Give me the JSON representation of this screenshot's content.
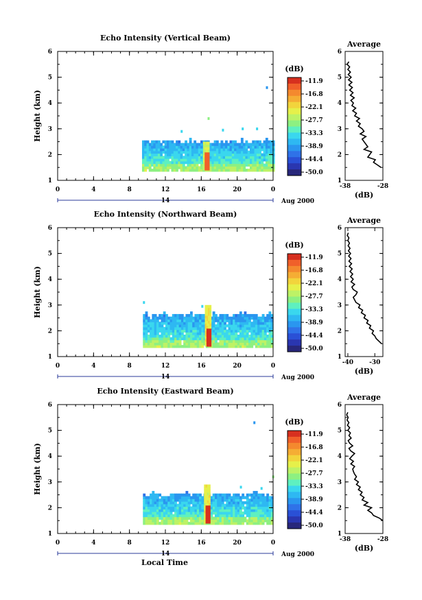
{
  "figure": {
    "xlabel_bottom": "Local Time"
  },
  "colorbar": {
    "unit": "(dB)",
    "tick_labels": [
      "-11.9",
      "-16.8",
      "-22.1",
      "-27.7",
      "-33.3",
      "-38.9",
      "-44.4",
      "-50.0"
    ],
    "colors": [
      "#d7301f",
      "#f0602a",
      "#f4892e",
      "#f5ad34",
      "#f2d43c",
      "#e6f04a",
      "#bdf266",
      "#8df081",
      "#5ef0c0",
      "#3ad7ee",
      "#2eb8f2",
      "#2a96ef",
      "#2f72e8",
      "#2a50d6",
      "#2a36b0",
      "#28277a"
    ]
  },
  "chart_data": [
    {
      "type": "heatmap",
      "title": "Echo Intensity (Vertical Beam)",
      "ylabel": "Height (km)",
      "xlabel": "Local Time",
      "x_ticks": [
        "0",
        "4",
        "8",
        "12",
        "16",
        "20",
        "0"
      ],
      "y_ticks": [
        "1",
        "2",
        "3",
        "4",
        "5",
        "6"
      ],
      "xlim": [
        0,
        24
      ],
      "ylim": [
        1,
        6
      ],
      "date_label": "14",
      "date_suffix": "Aug 2000",
      "data_region": {
        "time_start": 9.4,
        "time_end": 24,
        "height_bottom": 1.35,
        "height_top": 2.55
      },
      "enhanced_band": {
        "time": [
          16.2,
          16.9
        ],
        "height": [
          1.4,
          2.5
        ],
        "level_db": -20
      },
      "scatter_echoes": [
        {
          "time": 23.2,
          "height": 4.55,
          "level_db": -40
        },
        {
          "time": 16.7,
          "height": 3.35,
          "level_db": -30
        },
        {
          "time": 13.7,
          "height": 2.85,
          "level_db": -36
        },
        {
          "time": 18.3,
          "height": 2.9,
          "level_db": -36
        },
        {
          "time": 20.5,
          "height": 2.95,
          "level_db": -36
        },
        {
          "time": 22.1,
          "height": 2.95,
          "level_db": -36
        }
      ],
      "profile": {
        "title": "Average",
        "xlabel": "(dB)",
        "x_ticks": [
          "-38",
          "-28"
        ],
        "xlim": [
          -38,
          -28
        ],
        "heights": [
          1.5,
          1.6,
          1.7,
          1.8,
          1.9,
          2.0,
          2.1,
          2.2,
          2.3,
          2.4,
          2.5,
          2.6,
          2.7,
          2.8,
          2.9,
          3.0,
          3.1,
          3.2,
          3.3,
          3.4,
          3.5,
          3.6,
          3.7,
          3.8,
          3.9,
          4.0,
          4.1,
          4.2,
          4.3,
          4.4,
          4.5,
          4.6,
          4.7,
          4.8,
          4.9,
          5.0,
          5.1,
          5.2,
          5.3,
          5.4,
          5.5,
          5.6
        ],
        "values_db": [
          -28.5,
          -29.5,
          -30.5,
          -30.0,
          -32.0,
          -31.5,
          -31.0,
          -33.0,
          -32.0,
          -32.5,
          -33.0,
          -33.5,
          -32.5,
          -34.0,
          -33.0,
          -33.5,
          -34.5,
          -34.0,
          -35.0,
          -34.2,
          -35.5,
          -35.0,
          -36.0,
          -35.2,
          -36.2,
          -35.8,
          -36.5,
          -35.6,
          -36.6,
          -35.9,
          -36.8,
          -36.1,
          -37.0,
          -36.2,
          -37.1,
          -36.4,
          -37.2,
          -36.6,
          -37.3,
          -36.8,
          -37.5,
          -37.0
        ]
      }
    },
    {
      "type": "heatmap",
      "title": "Echo Intensity (Northward Beam)",
      "ylabel": "Height (km)",
      "xlabel": "Local Time",
      "x_ticks": [
        "0",
        "4",
        "8",
        "12",
        "16",
        "20",
        "0"
      ],
      "y_ticks": [
        "1",
        "2",
        "3",
        "4",
        "5",
        "6"
      ],
      "xlim": [
        0,
        24
      ],
      "ylim": [
        1,
        6
      ],
      "date_label": "14",
      "date_suffix": "Aug 2000",
      "data_region": {
        "time_start": 9.5,
        "time_end": 24,
        "height_bottom": 1.35,
        "height_top": 2.65
      },
      "enhanced_band": {
        "time": [
          16.4,
          17.1
        ],
        "height": [
          1.4,
          2.95
        ],
        "level_db": -18
      },
      "scatter_echoes": [
        {
          "time": 9.5,
          "height": 3.05,
          "level_db": -34
        },
        {
          "time": 16.0,
          "height": 2.9,
          "level_db": -36
        }
      ],
      "profile": {
        "title": "Average",
        "xlabel": "(dB)",
        "x_ticks": [
          "-40",
          "-30"
        ],
        "xlim": [
          -41,
          -27
        ],
        "heights": [
          1.5,
          1.6,
          1.7,
          1.8,
          1.9,
          2.0,
          2.1,
          2.2,
          2.3,
          2.4,
          2.5,
          2.6,
          2.7,
          2.8,
          2.9,
          3.0,
          3.1,
          3.2,
          3.3,
          3.4,
          3.5,
          3.6,
          3.7,
          3.8,
          3.9,
          4.0,
          4.1,
          4.2,
          4.3,
          4.4,
          4.5,
          4.6,
          4.7,
          4.8,
          4.9,
          5.0,
          5.1,
          5.2,
          5.3,
          5.4,
          5.5,
          5.6,
          5.7,
          5.8
        ],
        "values_db": [
          -27.5,
          -28.5,
          -29.5,
          -30.0,
          -31.0,
          -30.5,
          -32.0,
          -31.5,
          -33.0,
          -32.5,
          -34.0,
          -33.5,
          -35.0,
          -34.5,
          -36.0,
          -35.5,
          -37.0,
          -37.5,
          -38.0,
          -37.0,
          -36.5,
          -38.0,
          -38.5,
          -37.5,
          -38.8,
          -38.0,
          -39.0,
          -38.2,
          -39.2,
          -38.4,
          -39.5,
          -38.6,
          -39.6,
          -38.8,
          -39.7,
          -39.0,
          -39.8,
          -39.2,
          -39.9,
          -39.4,
          -40.0,
          -39.6,
          -40.2,
          -39.8
        ]
      }
    },
    {
      "type": "heatmap",
      "title": "Echo Intensity (Eastward Beam)",
      "ylabel": "Height (km)",
      "xlabel": "Local Time",
      "x_ticks": [
        "0",
        "4",
        "8",
        "12",
        "16",
        "20",
        "0"
      ],
      "y_ticks": [
        "1",
        "2",
        "3",
        "4",
        "5",
        "6"
      ],
      "xlim": [
        0,
        24
      ],
      "ylim": [
        1,
        6
      ],
      "date_label": "14",
      "date_suffix": "Aug 2000",
      "data_region": {
        "time_start": 9.5,
        "time_end": 24,
        "height_bottom": 1.35,
        "height_top": 2.55
      },
      "enhanced_band": {
        "time": [
          16.3,
          17.0
        ],
        "height": [
          1.4,
          2.9
        ],
        "level_db": -18
      },
      "scatter_echoes": [
        {
          "time": 21.8,
          "height": 5.25,
          "level_db": -40
        },
        {
          "time": 23.9,
          "height": 3.15,
          "level_db": -30
        },
        {
          "time": 22.6,
          "height": 2.7,
          "level_db": -36
        },
        {
          "time": 20.3,
          "height": 2.75,
          "level_db": -36
        }
      ],
      "profile": {
        "title": "Average",
        "xlabel": "(dB)",
        "x_ticks": [
          "-38",
          "-28"
        ],
        "xlim": [
          -38,
          -28
        ],
        "heights": [
          1.5,
          1.6,
          1.7,
          1.8,
          1.9,
          2.0,
          2.1,
          2.2,
          2.3,
          2.4,
          2.5,
          2.6,
          2.7,
          2.8,
          2.9,
          3.0,
          3.1,
          3.2,
          3.3,
          3.4,
          3.5,
          3.6,
          3.7,
          3.8,
          3.9,
          4.0,
          4.1,
          4.2,
          4.3,
          4.4,
          4.5,
          4.6,
          4.7,
          4.8,
          4.9,
          5.0,
          5.1,
          5.2,
          5.3,
          5.4,
          5.5,
          5.6,
          5.7
        ],
        "values_db": [
          -28.0,
          -29.0,
          -30.5,
          -31.0,
          -32.0,
          -31.0,
          -33.0,
          -32.0,
          -33.5,
          -33.0,
          -34.0,
          -33.5,
          -34.5,
          -34.0,
          -35.0,
          -34.5,
          -35.5,
          -35.0,
          -35.5,
          -35.8,
          -36.0,
          -35.5,
          -36.5,
          -35.8,
          -36.8,
          -36.2,
          -35.5,
          -36.5,
          -37.0,
          -36.0,
          -36.8,
          -37.2,
          -36.4,
          -37.0,
          -36.6,
          -37.3,
          -36.8,
          -37.4,
          -37.0,
          -37.5,
          -37.2,
          -37.6,
          -37.3
        ]
      }
    }
  ]
}
